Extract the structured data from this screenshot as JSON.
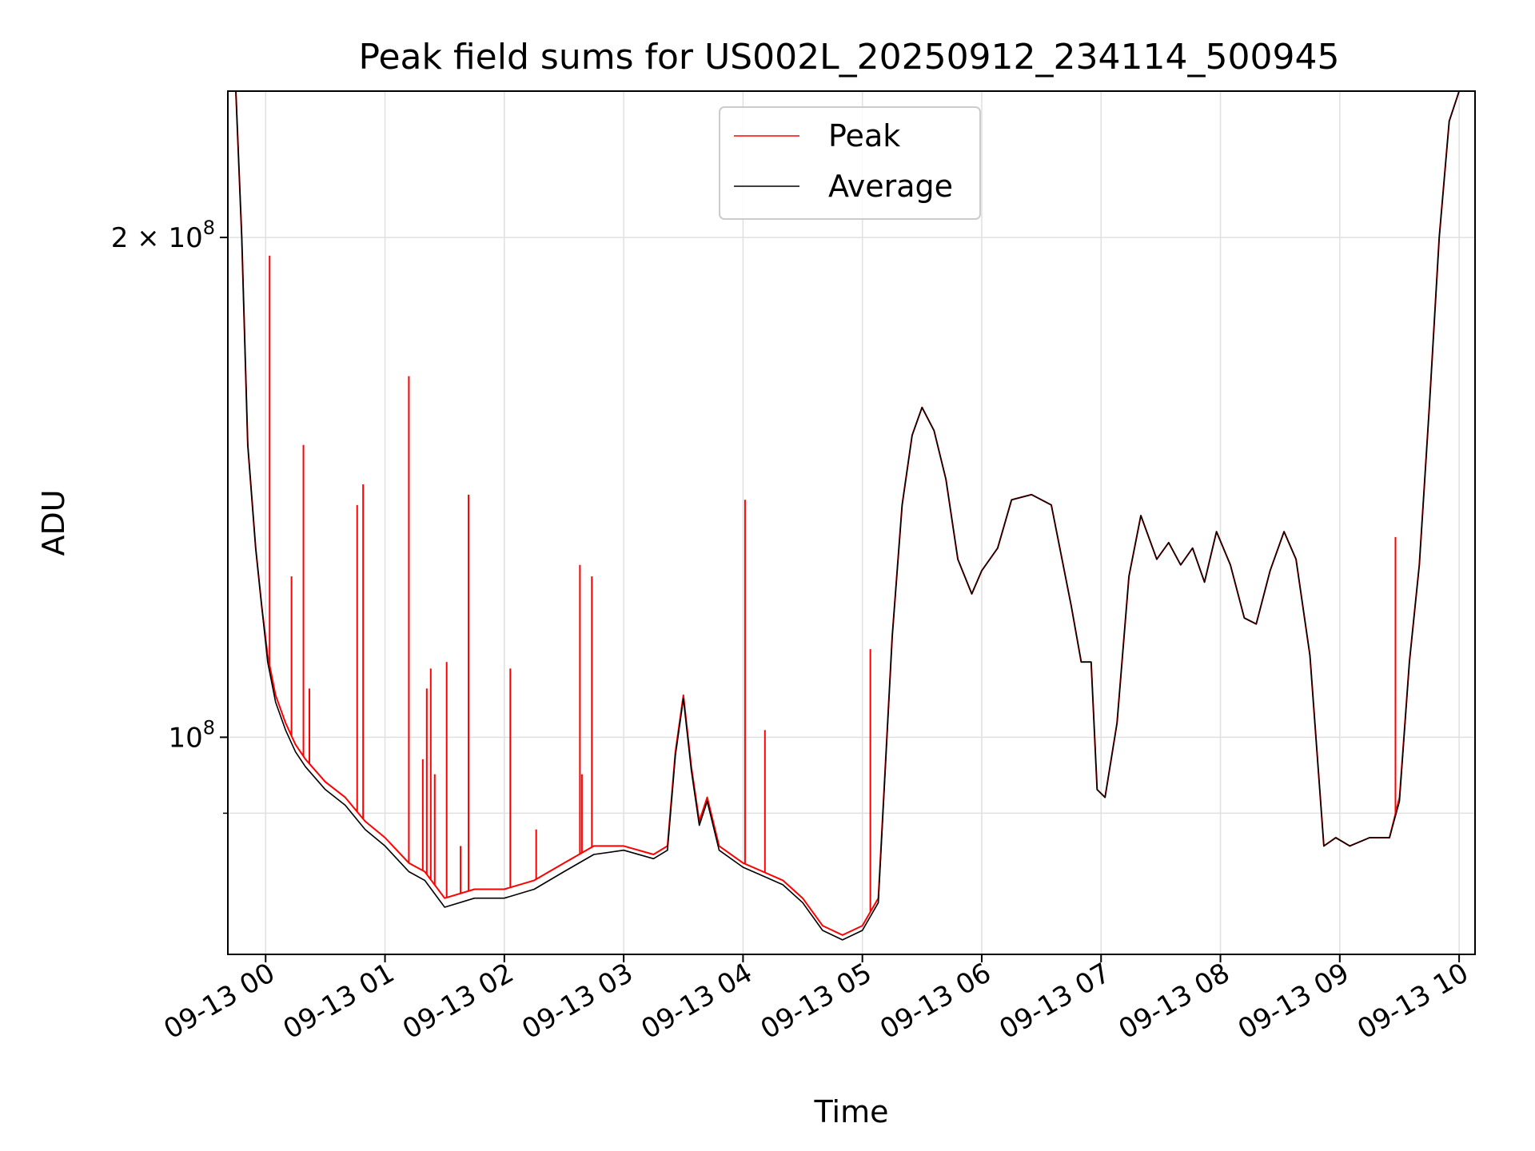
{
  "chart_data": {
    "type": "line",
    "title": "Peak field sums for US002L_20250912_234114_500945",
    "xlabel": "Time",
    "ylabel": "ADU",
    "y_scale": "log",
    "xlim": [
      "2025-09-12 23:41",
      "2025-09-13 10:08"
    ],
    "ylim": [
      74000000,
      245000000
    ],
    "x_ticks": [
      "09-13 00",
      "09-13 01",
      "09-13 02",
      "09-13 03",
      "09-13 04",
      "09-13 05",
      "09-13 06",
      "09-13 07",
      "09-13 08",
      "09-13 09",
      "09-13 10"
    ],
    "y_major_ticks": [
      {
        "value": 100000000,
        "mantissa": "",
        "exp": "8"
      },
      {
        "value": 200000000,
        "mantissa": "2 × ",
        "exp": "8"
      }
    ],
    "y_minor_ticks": [
      90000000
    ],
    "grid": true,
    "legend": {
      "position": "top-center"
    },
    "series": [
      {
        "name": "Peak",
        "color": "#ff0000",
        "x": [
          "2025-09-12 23:41",
          "2025-09-12 23:45",
          "2025-09-12 23:48",
          "2025-09-12 23:51",
          "2025-09-12 23:55",
          "2025-09-12 23:58",
          "2025-09-13 00:01",
          "2025-09-13 00:05",
          "2025-09-13 00:10",
          "2025-09-13 00:15",
          "2025-09-13 00:20",
          "2025-09-13 00:30",
          "2025-09-13 00:40",
          "2025-09-13 00:50",
          "2025-09-13 01:00",
          "2025-09-13 01:12",
          "2025-09-13 01:20",
          "2025-09-13 01:30",
          "2025-09-13 01:45",
          "2025-09-13 02:00",
          "2025-09-13 02:15",
          "2025-09-13 02:30",
          "2025-09-13 02:45",
          "2025-09-13 03:00",
          "2025-09-13 03:15",
          "2025-09-13 03:22",
          "2025-09-13 03:26",
          "2025-09-13 03:30",
          "2025-09-13 03:34",
          "2025-09-13 03:38",
          "2025-09-13 03:42",
          "2025-09-13 03:48",
          "2025-09-13 04:00",
          "2025-09-13 04:10",
          "2025-09-13 04:20",
          "2025-09-13 04:30",
          "2025-09-13 04:40",
          "2025-09-13 04:50",
          "2025-09-13 05:00",
          "2025-09-13 05:08",
          "2025-09-13 05:15",
          "2025-09-13 05:20",
          "2025-09-13 05:25",
          "2025-09-13 05:30",
          "2025-09-13 05:36",
          "2025-09-13 05:42",
          "2025-09-13 05:48",
          "2025-09-13 05:55",
          "2025-09-13 06:00",
          "2025-09-13 06:08",
          "2025-09-13 06:15",
          "2025-09-13 06:25",
          "2025-09-13 06:35",
          "2025-09-13 06:45",
          "2025-09-13 06:50",
          "2025-09-13 06:55",
          "2025-09-13 06:58",
          "2025-09-13 07:02",
          "2025-09-13 07:08",
          "2025-09-13 07:14",
          "2025-09-13 07:20",
          "2025-09-13 07:28",
          "2025-09-13 07:34",
          "2025-09-13 07:40",
          "2025-09-13 07:46",
          "2025-09-13 07:52",
          "2025-09-13 07:58",
          "2025-09-13 08:05",
          "2025-09-13 08:12",
          "2025-09-13 08:18",
          "2025-09-13 08:25",
          "2025-09-13 08:32",
          "2025-09-13 08:38",
          "2025-09-13 08:45",
          "2025-09-13 08:52",
          "2025-09-13 08:58",
          "2025-09-13 09:05",
          "2025-09-13 09:15",
          "2025-09-13 09:25",
          "2025-09-13 09:30",
          "2025-09-13 09:35",
          "2025-09-13 09:40",
          "2025-09-13 09:45",
          "2025-09-13 09:50",
          "2025-09-13 09:55",
          "2025-09-13 10:00",
          "2025-09-13 10:03",
          "2025-09-13 10:06"
        ],
        "y": [
          245000000,
          245000000,
          200000000,
          150000000,
          130000000,
          120000000,
          112000000,
          106000000,
          102000000,
          99000000,
          97000000,
          94000000,
          92000000,
          89000000,
          87000000,
          84000000,
          83000000,
          80000000,
          81000000,
          81000000,
          82000000,
          84000000,
          86000000,
          86000000,
          85000000,
          86000000,
          98000000,
          106000000,
          96000000,
          89000000,
          92000000,
          86000000,
          84000000,
          83000000,
          82000000,
          80000000,
          77000000,
          76000000,
          77000000,
          80000000,
          115000000,
          138000000,
          152000000,
          158000000,
          153000000,
          143000000,
          128000000,
          122000000,
          126000000,
          130000000,
          139000000,
          140000000,
          138000000,
          120000000,
          111000000,
          111000000,
          93000000,
          92000000,
          102000000,
          125000000,
          136000000,
          128000000,
          131000000,
          127000000,
          130000000,
          124000000,
          133000000,
          127000000,
          118000000,
          117000000,
          126000000,
          133000000,
          128000000,
          112000000,
          86000000,
          87000000,
          86000000,
          87000000,
          87000000,
          92000000,
          111000000,
          127000000,
          158000000,
          200000000,
          235000000,
          245000000,
          245000000,
          245000000
        ]
      },
      {
        "name": "Average",
        "color": "#000000",
        "x": [
          "2025-09-12 23:41",
          "2025-09-12 23:45",
          "2025-09-12 23:48",
          "2025-09-12 23:51",
          "2025-09-12 23:55",
          "2025-09-12 23:58",
          "2025-09-13 00:01",
          "2025-09-13 00:05",
          "2025-09-13 00:10",
          "2025-09-13 00:15",
          "2025-09-13 00:20",
          "2025-09-13 00:30",
          "2025-09-13 00:40",
          "2025-09-13 00:50",
          "2025-09-13 01:00",
          "2025-09-13 01:12",
          "2025-09-13 01:20",
          "2025-09-13 01:30",
          "2025-09-13 01:45",
          "2025-09-13 02:00",
          "2025-09-13 02:15",
          "2025-09-13 02:30",
          "2025-09-13 02:45",
          "2025-09-13 03:00",
          "2025-09-13 03:15",
          "2025-09-13 03:22",
          "2025-09-13 03:26",
          "2025-09-13 03:30",
          "2025-09-13 03:34",
          "2025-09-13 03:38",
          "2025-09-13 03:42",
          "2025-09-13 03:48",
          "2025-09-13 04:00",
          "2025-09-13 04:10",
          "2025-09-13 04:20",
          "2025-09-13 04:30",
          "2025-09-13 04:40",
          "2025-09-13 04:50",
          "2025-09-13 05:00",
          "2025-09-13 05:08",
          "2025-09-13 05:15",
          "2025-09-13 05:20",
          "2025-09-13 05:25",
          "2025-09-13 05:30",
          "2025-09-13 05:36",
          "2025-09-13 05:42",
          "2025-09-13 05:48",
          "2025-09-13 05:55",
          "2025-09-13 06:00",
          "2025-09-13 06:08",
          "2025-09-13 06:15",
          "2025-09-13 06:25",
          "2025-09-13 06:35",
          "2025-09-13 06:45",
          "2025-09-13 06:50",
          "2025-09-13 06:55",
          "2025-09-13 06:58",
          "2025-09-13 07:02",
          "2025-09-13 07:08",
          "2025-09-13 07:14",
          "2025-09-13 07:20",
          "2025-09-13 07:28",
          "2025-09-13 07:34",
          "2025-09-13 07:40",
          "2025-09-13 07:46",
          "2025-09-13 07:52",
          "2025-09-13 07:58",
          "2025-09-13 08:05",
          "2025-09-13 08:12",
          "2025-09-13 08:18",
          "2025-09-13 08:25",
          "2025-09-13 08:32",
          "2025-09-13 08:38",
          "2025-09-13 08:45",
          "2025-09-13 08:52",
          "2025-09-13 08:58",
          "2025-09-13 09:05",
          "2025-09-13 09:15",
          "2025-09-13 09:25",
          "2025-09-13 09:30",
          "2025-09-13 09:35",
          "2025-09-13 09:40",
          "2025-09-13 09:45",
          "2025-09-13 09:50",
          "2025-09-13 09:55",
          "2025-09-13 10:00",
          "2025-09-13 10:03",
          "2025-09-13 10:06"
        ],
        "y": [
          245000000,
          245000000,
          200000000,
          150000000,
          130000000,
          120000000,
          111000000,
          105000000,
          101000000,
          98000000,
          96000000,
          93000000,
          91000000,
          88000000,
          86000000,
          83000000,
          82000000,
          79000000,
          80000000,
          80000000,
          81000000,
          83000000,
          85000000,
          85500000,
          84500000,
          85500000,
          97500000,
          105500000,
          95500000,
          88500000,
          91500000,
          85500000,
          83500000,
          82500000,
          81500000,
          79500000,
          76500000,
          75500000,
          76500000,
          79500000,
          115000000,
          138000000,
          152000000,
          158000000,
          153000000,
          143000000,
          128000000,
          122000000,
          126000000,
          130000000,
          139000000,
          140000000,
          138000000,
          120000000,
          111000000,
          111000000,
          93000000,
          92000000,
          102000000,
          125000000,
          136000000,
          128000000,
          131000000,
          127000000,
          130000000,
          124000000,
          133000000,
          127000000,
          118000000,
          117000000,
          126000000,
          133000000,
          128000000,
          112000000,
          86000000,
          87000000,
          86000000,
          87000000,
          87000000,
          91500000,
          111000000,
          127000000,
          158000000,
          200000000,
          235000000,
          245000000,
          245000000,
          245000000
        ]
      }
    ],
    "peak_spikes": [
      {
        "x": "2025-09-13 00:02",
        "y": 195000000
      },
      {
        "x": "2025-09-13 00:13",
        "y": 125000000
      },
      {
        "x": "2025-09-13 00:19",
        "y": 150000000
      },
      {
        "x": "2025-09-13 00:22",
        "y": 107000000
      },
      {
        "x": "2025-09-13 00:46",
        "y": 138000000
      },
      {
        "x": "2025-09-13 00:49",
        "y": 142000000
      },
      {
        "x": "2025-09-13 01:12",
        "y": 165000000
      },
      {
        "x": "2025-09-13 01:19",
        "y": 97000000
      },
      {
        "x": "2025-09-13 01:21",
        "y": 107000000
      },
      {
        "x": "2025-09-13 01:23",
        "y": 110000000
      },
      {
        "x": "2025-09-13 01:25",
        "y": 95000000
      },
      {
        "x": "2025-09-13 01:31",
        "y": 111000000
      },
      {
        "x": "2025-09-13 01:38",
        "y": 86000000
      },
      {
        "x": "2025-09-13 01:42",
        "y": 140000000
      },
      {
        "x": "2025-09-13 02:03",
        "y": 110000000
      },
      {
        "x": "2025-09-13 02:16",
        "y": 88000000
      },
      {
        "x": "2025-09-13 02:38",
        "y": 127000000
      },
      {
        "x": "2025-09-13 02:39",
        "y": 95000000
      },
      {
        "x": "2025-09-13 02:44",
        "y": 125000000
      },
      {
        "x": "2025-09-13 04:01",
        "y": 139000000
      },
      {
        "x": "2025-09-13 04:11",
        "y": 101000000
      },
      {
        "x": "2025-09-13 05:04",
        "y": 113000000
      },
      {
        "x": "2025-09-13 09:28",
        "y": 132000000
      }
    ]
  }
}
